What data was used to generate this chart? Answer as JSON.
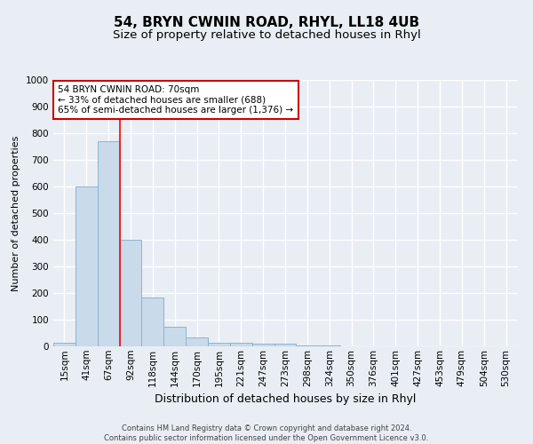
{
  "title": "54, BRYN CWNIN ROAD, RHYL, LL18 4UB",
  "subtitle": "Size of property relative to detached houses in Rhyl",
  "xlabel": "Distribution of detached houses by size in Rhyl",
  "ylabel": "Number of detached properties",
  "footer_line1": "Contains HM Land Registry data © Crown copyright and database right 2024.",
  "footer_line2": "Contains public sector information licensed under the Open Government Licence v3.0.",
  "categories": [
    "15sqm",
    "41sqm",
    "67sqm",
    "92sqm",
    "118sqm",
    "144sqm",
    "170sqm",
    "195sqm",
    "221sqm",
    "247sqm",
    "273sqm",
    "298sqm",
    "324sqm",
    "350sqm",
    "376sqm",
    "401sqm",
    "427sqm",
    "453sqm",
    "479sqm",
    "504sqm",
    "530sqm"
  ],
  "values": [
    15,
    600,
    770,
    400,
    185,
    75,
    35,
    15,
    12,
    10,
    10,
    5,
    2,
    1,
    0,
    0,
    0,
    0,
    0,
    0,
    0
  ],
  "bar_color": "#c9daea",
  "bar_edge_color": "#8cb4d2",
  "red_line_x": 2.5,
  "annotation_text_line1": "54 BRYN CWNIN ROAD: 70sqm",
  "annotation_text_line2": "← 33% of detached houses are smaller (688)",
  "annotation_text_line3": "65% of semi-detached houses are larger (1,376) →",
  "annotation_box_facecolor": "#ffffff",
  "annotation_box_edgecolor": "#cc0000",
  "ylim": [
    0,
    1000
  ],
  "yticks": [
    0,
    100,
    200,
    300,
    400,
    500,
    600,
    700,
    800,
    900,
    1000
  ],
  "bg_color": "#e8eef4",
  "grid_color": "#ffffff",
  "title_fontsize": 11,
  "subtitle_fontsize": 9.5,
  "xlabel_fontsize": 9,
  "ylabel_fontsize": 8,
  "tick_fontsize": 7.5,
  "annotation_fontsize": 7.5,
  "footer_fontsize": 6
}
